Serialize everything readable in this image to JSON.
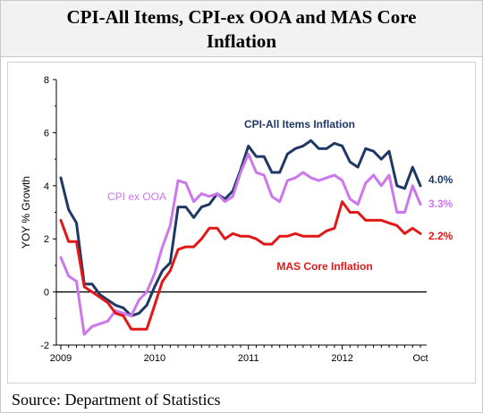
{
  "chart_data": {
    "type": "line",
    "title_line1": "CPI-All Items, CPI-ex OOA and MAS Core",
    "title_line2": "Inflation",
    "ylabel": "YOY % Growth",
    "xlabel": "",
    "ylim": [
      -2,
      8
    ],
    "yticks": [
      "8",
      "6",
      "4",
      "2",
      "0",
      "-2"
    ],
    "xticks": [
      "2009",
      "2010",
      "2011",
      "2012",
      "Oct"
    ],
    "x_range": [
      "2009-01",
      "2012-10"
    ],
    "grid": false,
    "source": "Source: Department of Statistics",
    "series": [
      {
        "name": "CPI-All Items Inflation",
        "color": "#1f3864",
        "end_label": "4.0%",
        "values": [
          4.3,
          3.1,
          2.6,
          0.3,
          0.3,
          -0.1,
          -0.3,
          -0.5,
          -0.6,
          -0.9,
          -0.8,
          -0.5,
          0.2,
          0.8,
          1.1,
          3.2,
          3.2,
          2.8,
          3.2,
          3.3,
          3.7,
          3.5,
          3.8,
          4.6,
          5.5,
          5.1,
          5.1,
          4.5,
          4.5,
          5.2,
          5.4,
          5.5,
          5.7,
          5.4,
          5.4,
          5.6,
          5.5,
          4.9,
          4.7,
          5.4,
          5.3,
          5.0,
          5.3,
          4.0,
          3.9,
          4.7,
          4.0
        ]
      },
      {
        "name": "CPI ex OOA",
        "color": "#cc77ee",
        "end_label": "3.3%",
        "values": [
          1.3,
          0.6,
          0.4,
          -1.6,
          -1.3,
          -1.2,
          -1.1,
          -0.7,
          -0.8,
          -0.9,
          -0.3,
          0.0,
          0.7,
          1.7,
          2.5,
          4.2,
          4.1,
          3.4,
          3.7,
          3.6,
          3.7,
          3.4,
          3.6,
          4.5,
          5.2,
          4.5,
          4.4,
          3.6,
          3.4,
          4.2,
          4.3,
          4.5,
          4.3,
          4.2,
          4.3,
          4.4,
          4.2,
          3.5,
          3.3,
          4.1,
          4.4,
          4.0,
          4.4,
          3.0,
          3.0,
          4.0,
          3.3
        ]
      },
      {
        "name": "MAS Core Inflation",
        "color": "#e01818",
        "end_label": "2.2%",
        "values": [
          2.7,
          1.9,
          1.9,
          0.2,
          0.0,
          -0.2,
          -0.4,
          -0.8,
          -0.9,
          -1.4,
          -1.4,
          -1.4,
          -0.5,
          0.4,
          0.8,
          1.6,
          1.7,
          1.7,
          2.0,
          2.4,
          2.4,
          2.0,
          2.2,
          2.1,
          2.1,
          2.0,
          1.8,
          1.8,
          2.1,
          2.1,
          2.2,
          2.1,
          2.1,
          2.1,
          2.3,
          2.4,
          3.4,
          3.0,
          3.0,
          2.7,
          2.7,
          2.7,
          2.6,
          2.5,
          2.2,
          2.4,
          2.2
        ]
      }
    ]
  }
}
